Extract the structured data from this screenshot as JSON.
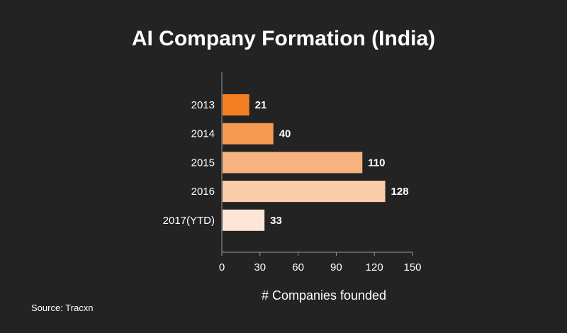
{
  "chart_data": {
    "type": "bar",
    "orientation": "horizontal",
    "title": "AI Company Formation (India)",
    "xlabel": "# Companies founded",
    "ylabel": "",
    "categories": [
      "2013",
      "2014",
      "2015",
      "2016",
      "2017(YTD)"
    ],
    "values": [
      21,
      40,
      110,
      128,
      33
    ],
    "value_labels": [
      "21",
      "40",
      "110",
      "128",
      "33"
    ],
    "xlim": [
      0,
      150
    ],
    "xticks": [
      0,
      30,
      60,
      90,
      120,
      150
    ],
    "xtick_labels": [
      "0",
      "30",
      "60",
      "90",
      "120",
      "150"
    ],
    "bar_colors": [
      "#f47f22",
      "#f59a52",
      "#f8b27f",
      "#fbcdab",
      "#fde6d6"
    ],
    "grid": false,
    "legend": "none"
  },
  "source": "Source: Tracxn",
  "colors": {
    "background": "#232323",
    "text": "#ffffff",
    "axis": "#9a9a9a"
  }
}
